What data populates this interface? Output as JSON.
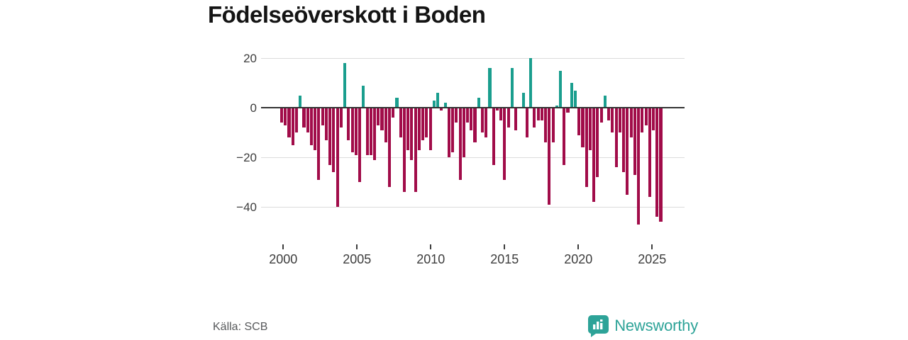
{
  "title": "Födelseöverskott i Boden",
  "source": "Källa: SCB",
  "brand": {
    "name": "Newsworthy",
    "color": "#2da398",
    "icon": "newsworthy-speech-bubble-bar-chart"
  },
  "chart_data": {
    "type": "bar",
    "title": "Födelseöverskott i Boden",
    "frequency": "quarterly",
    "x_start": "2000 Q1",
    "x_end": "2025 Q3",
    "values": [
      -6,
      -7,
      -12,
      -15,
      -10,
      5,
      -8,
      -10,
      -15,
      -17,
      -29,
      -7,
      -13,
      -23,
      -26,
      -40,
      -8,
      18,
      -13,
      -18,
      -19,
      -30,
      9,
      -19,
      -19,
      -21,
      -7,
      -9,
      -14,
      -32,
      -4,
      4,
      -12,
      -34,
      -17,
      -21,
      -34,
      -17,
      -13,
      -12,
      -17,
      3,
      6,
      -1,
      2,
      -20,
      -18,
      -6,
      -29,
      -20,
      -6,
      -9,
      -14,
      4,
      -10,
      -12,
      16,
      -23,
      -1,
      -5,
      -29,
      -8,
      16,
      -9,
      0,
      6,
      -12,
      20,
      -8,
      -5,
      -5,
      -14,
      -39,
      -14,
      1,
      15,
      -23,
      -2,
      10,
      7,
      -11,
      -16,
      -32,
      -17,
      -38,
      -28,
      -6,
      5,
      -5,
      -10,
      -24,
      -10,
      -26,
      -35,
      -12,
      -27,
      -47,
      -10,
      -7,
      -36,
      -9,
      -44,
      -46
    ],
    "y_ticks": [
      {
        "value": 20,
        "label": "20"
      },
      {
        "value": 0,
        "label": "0"
      },
      {
        "value": -20,
        "label": "−20"
      },
      {
        "value": -40,
        "label": "−40"
      }
    ],
    "x_ticks": [
      "2000",
      "2005",
      "2010",
      "2015",
      "2020",
      "2025"
    ],
    "ylim": [
      -50,
      22
    ],
    "grid": true,
    "legend": false,
    "positive_color": "#1a9e8e",
    "negative_color": "#a10c49"
  }
}
